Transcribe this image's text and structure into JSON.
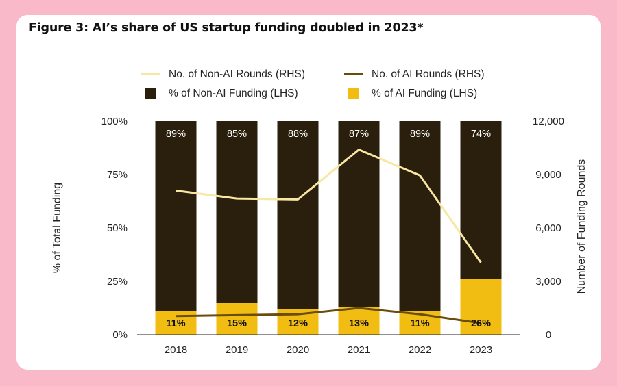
{
  "title": "Figure 3: AI’s share of US startup funding doubled in 2023*",
  "chart_data": {
    "type": "bar",
    "title": "Figure 3: AI’s share of US startup funding doubled in 2023*",
    "categories": [
      "2018",
      "2019",
      "2020",
      "2021",
      "2022",
      "2023"
    ],
    "series": [
      {
        "name": "% of Non-AI Funding (LHS)",
        "axis": "left",
        "kind": "stacked-bar",
        "color": "#2a1f0d",
        "values": [
          89,
          85,
          88,
          87,
          89,
          74
        ],
        "labels": [
          "89%",
          "85%",
          "88%",
          "87%",
          "89%",
          "74%"
        ]
      },
      {
        "name": "% of AI Funding (LHS)",
        "axis": "left",
        "kind": "stacked-bar",
        "color": "#f2bd12",
        "values": [
          11,
          15,
          12,
          13,
          11,
          26
        ],
        "labels": [
          "11%",
          "15%",
          "12%",
          "13%",
          "11%",
          "26%"
        ]
      },
      {
        "name": "No. of Non-AI Rounds (RHS)",
        "axis": "right",
        "kind": "line",
        "color": "#f8e7a3",
        "values": [
          8100,
          7650,
          7600,
          10400,
          8950,
          4050
        ]
      },
      {
        "name": "No. of AI Rounds (RHS)",
        "axis": "right",
        "kind": "line",
        "color": "#6b4c0f",
        "values": [
          1050,
          1100,
          1150,
          1500,
          1150,
          650
        ]
      }
    ],
    "legend": [
      {
        "name": "No. of Non-AI Rounds (RHS)",
        "marker": "line",
        "color": "#f8e7a3"
      },
      {
        "name": "No. of AI Rounds (RHS)",
        "marker": "line",
        "color": "#6b4c0f"
      },
      {
        "name": "% of Non-AI Funding (LHS)",
        "marker": "square",
        "color": "#2a1f0d"
      },
      {
        "name": "% of AI Funding (LHS)",
        "marker": "square",
        "color": "#f2bd12"
      }
    ],
    "ylabel": "% of Total Funding",
    "ylabel_right": "Number of Funding Rounds",
    "ylim": [
      0,
      100
    ],
    "ylim_right": [
      0,
      12000
    ],
    "yticks": [
      "0%",
      "25%",
      "50%",
      "75%",
      "100%"
    ],
    "yticks_right": [
      "0",
      "3,000",
      "6,000",
      "9,000",
      "12,000"
    ],
    "legend_position": "top",
    "grid": false
  }
}
